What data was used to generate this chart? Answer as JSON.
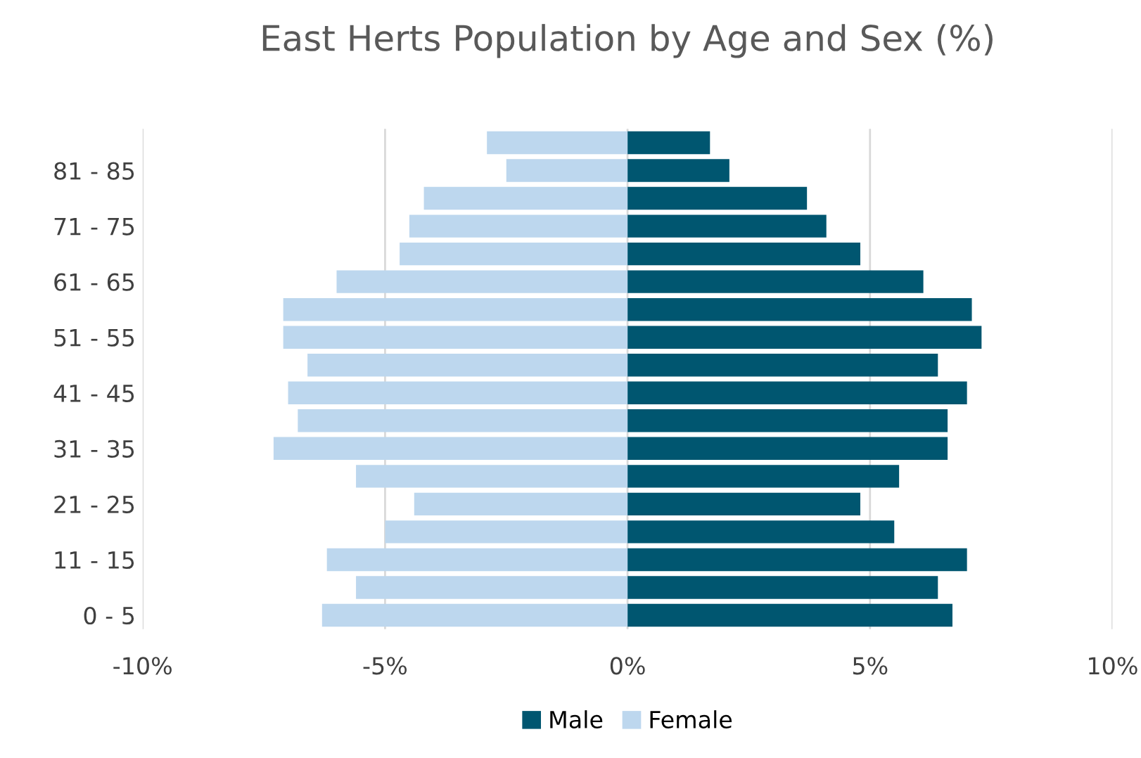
{
  "chart_data": {
    "type": "bar",
    "orientation": "horizontal",
    "title": "East Herts Population by Age and Sex (%)",
    "categories": [
      null,
      "81 - 85",
      null,
      "71 - 75",
      null,
      "61 - 65",
      null,
      "51 - 55",
      null,
      "41 - 45",
      null,
      "31 - 35",
      null,
      "21 - 25",
      null,
      "11 - 15",
      null,
      "0 - 5"
    ],
    "series": [
      {
        "name": "Male",
        "color": "#005670",
        "values": [
          1.7,
          2.1,
          3.7,
          4.1,
          4.8,
          6.1,
          7.1,
          7.3,
          6.4,
          7.0,
          6.6,
          6.6,
          5.6,
          4.8,
          5.5,
          7.0,
          6.4,
          6.7
        ]
      },
      {
        "name": "Female",
        "color": "#bdd7ee",
        "values": [
          -2.9,
          -2.5,
          -4.2,
          -4.5,
          -4.7,
          -6.0,
          -7.1,
          -7.1,
          -6.6,
          -7.0,
          -6.8,
          -7.3,
          -5.6,
          -4.4,
          -5.0,
          -6.2,
          -5.6,
          -6.3
        ]
      }
    ],
    "xlim": [
      -10,
      10
    ],
    "xticks": [
      {
        "value": -10,
        "label": "-10%"
      },
      {
        "value": -5,
        "label": "-5%"
      },
      {
        "value": 0,
        "label": "0%"
      },
      {
        "value": 5,
        "label": "5%"
      },
      {
        "value": 10,
        "label": "10%"
      }
    ],
    "grid": "x",
    "legend": "bottom",
    "stacked": true
  }
}
